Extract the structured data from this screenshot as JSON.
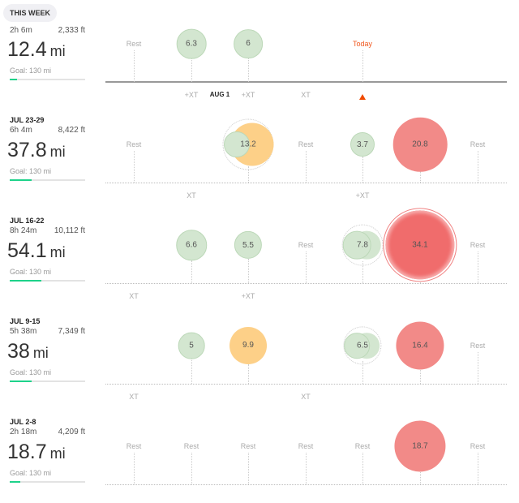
{
  "colors": {
    "easy": "#d3e6d0",
    "easy_border": "#bcd8b8",
    "tempo": "#fdd088",
    "long": "#f28a88",
    "race": "#f06c6c",
    "progress": "#1ed28a",
    "today": "#f05a22"
  },
  "markers": {
    "aug1": "AUG 1",
    "today": "Today",
    "rest": "Rest"
  },
  "weeks": [
    {
      "label": "THIS WEEK",
      "current": true,
      "time": "2h 6m",
      "elevation": "2,333 ft",
      "distance": "12.4",
      "unit": "mi",
      "goal": "Goal: 130 mi",
      "progress": 0.095,
      "days": [
        {
          "type": "rest"
        },
        {
          "type": "run",
          "value": "6.3",
          "kind": "easy",
          "xt": "+XT"
        },
        {
          "type": "run",
          "value": "6",
          "kind": "easy",
          "xt": "+XT"
        },
        {
          "type": "none",
          "xt": "XT"
        },
        {
          "type": "today"
        },
        {
          "type": "none"
        },
        {
          "type": "none"
        }
      ]
    },
    {
      "label": "JUL 23-29",
      "time": "6h 4m",
      "elevation": "8,422 ft",
      "distance": "37.8",
      "unit": "mi",
      "goal": "Goal: 130 mi",
      "progress": 0.29,
      "days": [
        {
          "type": "rest"
        },
        {
          "type": "none",
          "xt": "XT"
        },
        {
          "type": "run",
          "value": "13.2",
          "kind": "tempo",
          "multi": true
        },
        {
          "type": "rest"
        },
        {
          "type": "run",
          "value": "3.7",
          "kind": "easy",
          "xt": "+XT"
        },
        {
          "type": "run",
          "value": "20.8",
          "kind": "long"
        },
        {
          "type": "rest"
        }
      ]
    },
    {
      "label": "JUL 16-22",
      "time": "8h 24m",
      "elevation": "10,112 ft",
      "distance": "54.1",
      "unit": "mi",
      "goal": "Goal: 130 mi",
      "progress": 0.42,
      "days": [
        {
          "type": "none",
          "xt": "XT"
        },
        {
          "type": "run",
          "value": "6.6",
          "kind": "easy"
        },
        {
          "type": "run",
          "value": "5.5",
          "kind": "easy",
          "xt": "+XT"
        },
        {
          "type": "rest"
        },
        {
          "type": "run",
          "value": "7.8",
          "kind": "easy",
          "multi": true
        },
        {
          "type": "run",
          "value": "34.1",
          "kind": "race"
        },
        {
          "type": "rest"
        }
      ]
    },
    {
      "label": "JUL 9-15",
      "time": "5h 38m",
      "elevation": "7,349 ft",
      "distance": "38",
      "unit": "mi",
      "goal": "Goal: 130 mi",
      "progress": 0.29,
      "days": [
        {
          "type": "none",
          "xt": "XT"
        },
        {
          "type": "run",
          "value": "5",
          "kind": "easy"
        },
        {
          "type": "run",
          "value": "9.9",
          "kind": "tempo"
        },
        {
          "type": "none",
          "xt": "XT"
        },
        {
          "type": "run",
          "value": "6.5",
          "kind": "easy",
          "multi": true
        },
        {
          "type": "run",
          "value": "16.4",
          "kind": "long"
        },
        {
          "type": "rest"
        }
      ]
    },
    {
      "label": "JUL 2-8",
      "time": "2h 18m",
      "elevation": "4,209 ft",
      "distance": "18.7",
      "unit": "mi",
      "goal": "Goal: 130 mi",
      "progress": 0.14,
      "days": [
        {
          "type": "rest"
        },
        {
          "type": "rest"
        },
        {
          "type": "rest"
        },
        {
          "type": "rest"
        },
        {
          "type": "rest"
        },
        {
          "type": "run",
          "value": "18.7",
          "kind": "long"
        },
        {
          "type": "rest"
        }
      ]
    }
  ]
}
